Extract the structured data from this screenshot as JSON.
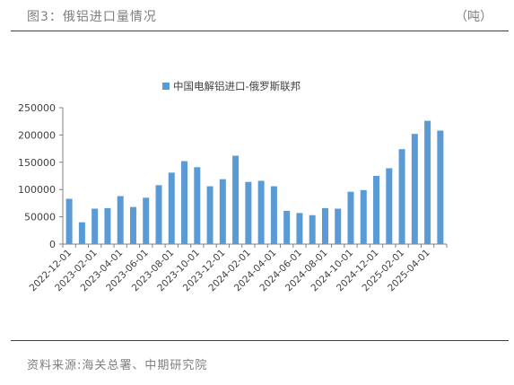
{
  "header": {
    "title": "图3：俄铝进口量情况",
    "unit": "（吨）"
  },
  "footer": {
    "source": "资料来源:海关总署、中期研究院"
  },
  "colors": {
    "bar": "#5b9bd5",
    "axis": "#808080",
    "text": "#404040"
  },
  "chart_data": {
    "type": "bar",
    "title": "",
    "xlabel": "",
    "ylabel": "",
    "ylim": [
      0,
      250000
    ],
    "yticks": [
      0,
      50000,
      100000,
      150000,
      200000,
      250000
    ],
    "grid": false,
    "legend": "top-center",
    "categories": [
      "2022-12-01",
      "2023-01-01",
      "2023-02-01",
      "2023-03-01",
      "2023-04-01",
      "2023-05-01",
      "2023-06-01",
      "2023-07-01",
      "2023-08-01",
      "2023-09-01",
      "2023-10-01",
      "2023-11-01",
      "2023-12-01",
      "2024-01-01",
      "2024-02-01",
      "2024-03-01",
      "2024-04-01",
      "2024-05-01",
      "2024-06-01",
      "2024-07-01",
      "2024-08-01",
      "2024-09-01",
      "2024-10-01",
      "2024-11-01",
      "2024-12-01",
      "2025-01-01",
      "2025-02-01",
      "2025-03-01",
      "2025-04-01",
      "2025-05-01"
    ],
    "xtick_labels": [
      "2022-12-01",
      "2023-02-01",
      "2023-04-01",
      "2023-06-01",
      "2023-08-01",
      "2023-10-01",
      "2023-12-01",
      "2024-02-01",
      "2024-04-01",
      "2024-06-01",
      "2024-08-01",
      "2024-10-01",
      "2024-12-01",
      "2025-02-01",
      "2025-04-01"
    ],
    "series": [
      {
        "name": "中国电解铝进口-俄罗斯联邦",
        "values": [
          83000,
          40000,
          65000,
          66000,
          88000,
          68000,
          85000,
          108000,
          131000,
          152000,
          141000,
          106000,
          119000,
          162000,
          114000,
          116000,
          106000,
          61000,
          57000,
          53000,
          66000,
          65000,
          96000,
          99000,
          125000,
          139000,
          174000,
          202000,
          226000,
          208000
        ]
      }
    ]
  }
}
